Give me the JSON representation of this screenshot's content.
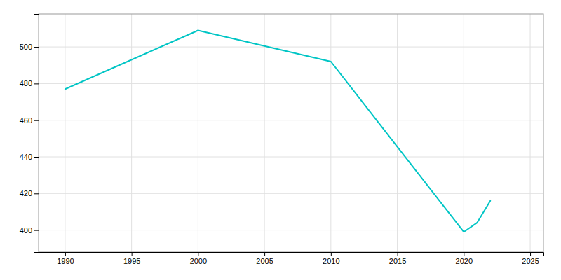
{
  "chart_data": {
    "type": "line",
    "x": [
      1990,
      2000,
      2010,
      2020,
      2021,
      2022
    ],
    "values": [
      477,
      509,
      492,
      399,
      404,
      416
    ],
    "color": "#00C5C5",
    "xlim": [
      1988,
      2026
    ],
    "ylim": [
      388,
      518
    ],
    "xticks": [
      1990,
      1995,
      2000,
      2005,
      2010,
      2015,
      2020,
      2025
    ],
    "yticks": [
      400,
      420,
      440,
      460,
      480,
      500
    ],
    "grid": true
  }
}
